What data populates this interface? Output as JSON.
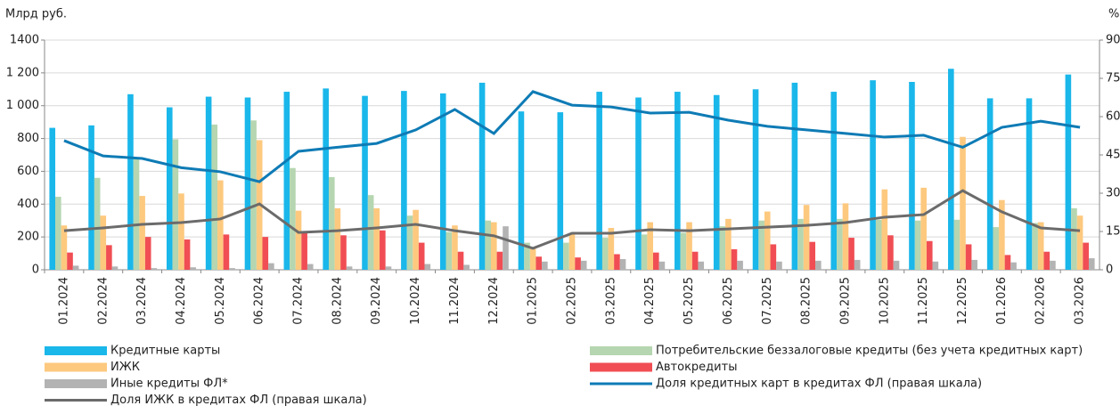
{
  "chart_data": {
    "type": "bar",
    "y_label": "Млрд руб.",
    "y2_label": "%",
    "categories": [
      "01.2024",
      "02.2024",
      "03.2024",
      "04.2024",
      "05.2024",
      "06.2024",
      "07.2024",
      "08.2024",
      "09.2024",
      "10.2024",
      "11.2024",
      "12.2024",
      "01.2025",
      "02.2025",
      "03.2025",
      "04.2025",
      "05.2025",
      "06.2025",
      "07.2025",
      "08.2025",
      "09.2025",
      "10.2025",
      "11.2025",
      "12.2025",
      "01.2026",
      "02.2026",
      "03.2026"
    ],
    "ylim": [
      0,
      1400
    ],
    "yticks": [
      0,
      200,
      400,
      600,
      800,
      {
        "value": 1000,
        "label": "1 000"
      },
      {
        "value": 1200,
        "label": "1 200"
      },
      {
        "value": 1400,
        "label": "1400"
      }
    ],
    "y2lim": [
      0,
      90
    ],
    "y2ticks": [
      0,
      15,
      30,
      45,
      60,
      75,
      90
    ],
    "grid": true,
    "series": [
      {
        "name": "Кредитные карты",
        "type": "bar",
        "color": "#1ab7ea",
        "values": [
          865,
          880,
          1070,
          990,
          1055,
          1050,
          1085,
          1105,
          1060,
          1090,
          1075,
          1140,
          965,
          960,
          1085,
          1050,
          1085,
          1065,
          1100,
          1140,
          1085,
          1155,
          1145,
          1225,
          1045,
          1045,
          1190
        ]
      },
      {
        "name": "Потребительские беззалоговые кредиты (без учета кредитных карт)",
        "type": "bar",
        "color": "#b5d6b0",
        "values": [
          445,
          560,
          680,
          795,
          885,
          910,
          620,
          565,
          455,
          330,
          230,
          300,
          165,
          165,
          195,
          215,
          225,
          265,
          300,
          310,
          310,
          305,
          300,
          305,
          260,
          285,
          375
        ]
      },
      {
        "name": "ИЖК",
        "type": "bar",
        "color": "#fdc97f",
        "values": [
          270,
          330,
          450,
          465,
          545,
          790,
          360,
          375,
          375,
          365,
          270,
          290,
          130,
          215,
          255,
          290,
          290,
          310,
          355,
          395,
          405,
          490,
          500,
          810,
          425,
          290,
          330
        ]
      },
      {
        "name": "Автокредиты",
        "type": "bar",
        "color": "#f04e54",
        "values": [
          105,
          150,
          200,
          185,
          215,
          200,
          235,
          210,
          240,
          165,
          110,
          110,
          80,
          75,
          95,
          105,
          110,
          125,
          155,
          170,
          195,
          210,
          175,
          155,
          90,
          110,
          165
        ]
      },
      {
        "name": "Иные кредиты ФЛ*",
        "type": "bar",
        "color": "#b3b3b3",
        "values": [
          25,
          20,
          10,
          15,
          10,
          40,
          35,
          20,
          20,
          35,
          30,
          265,
          50,
          55,
          65,
          50,
          50,
          55,
          50,
          55,
          60,
          55,
          50,
          60,
          45,
          55,
          70
        ]
      },
      {
        "name": "Доля кредитных карт в кредитах ФЛ (правая шкала)",
        "type": "line",
        "axis": "y2",
        "color": "#0e7bb5",
        "values": [
          50.6,
          44.6,
          43.6,
          40,
          38.4,
          34.5,
          46.4,
          48,
          49.5,
          54.8,
          62.8,
          53.4,
          69.8,
          64.5,
          63.8,
          61.4,
          61.7,
          58.6,
          56.2,
          54.8,
          53.4,
          52,
          52.7,
          48,
          55.8,
          58.2,
          55.8
        ]
      },
      {
        "name": "Доля ИЖК в кредитах ФЛ (правая шкала)",
        "type": "line",
        "axis": "y2",
        "color": "#6b6b6b",
        "values": [
          15.3,
          16.4,
          17.8,
          18.5,
          19.9,
          25.8,
          14.6,
          15.3,
          16.4,
          17.8,
          15.3,
          13.3,
          8.4,
          14.3,
          14.3,
          15.7,
          15.3,
          16,
          16.7,
          17.4,
          18.5,
          20.6,
          21.6,
          31,
          22.7,
          16.4,
          15.3
        ]
      }
    ]
  }
}
